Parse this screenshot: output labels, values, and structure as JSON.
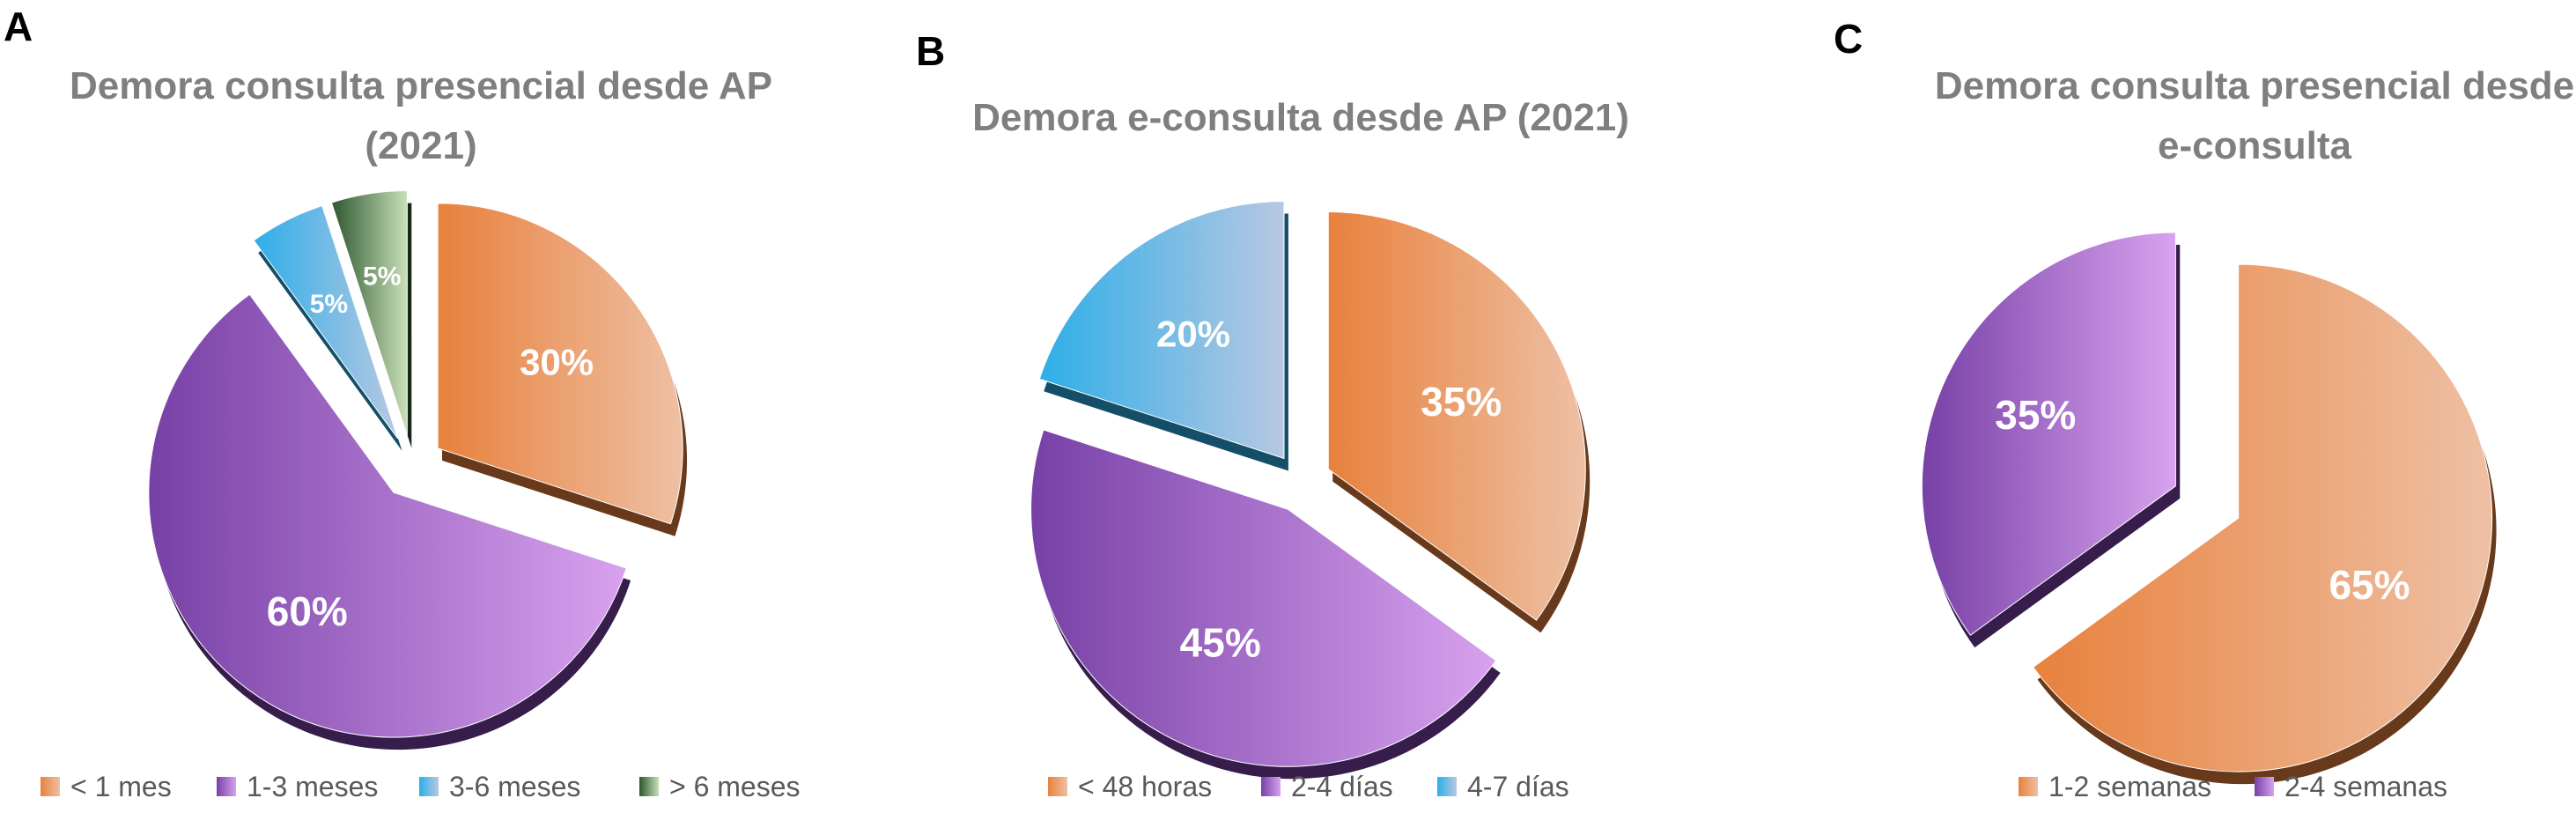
{
  "panel_letters": [
    "A",
    "B",
    "C"
  ],
  "chart_data": [
    {
      "type": "pie",
      "title_lines": [
        "Demora consulta presencial desde AP",
        "(2021)"
      ],
      "categories": [
        "< 1 mes",
        "1-3 meses",
        "3-6 meses",
        "> 6 meses"
      ],
      "values": [
        30,
        60,
        5,
        5
      ],
      "labels": [
        "30%",
        "60%",
        "5%",
        "5%"
      ],
      "colors": [
        [
          "#e8813d",
          "#eec0a4"
        ],
        [
          "#7740a6",
          "#d8a2ef"
        ],
        [
          "#2eaee8",
          "#b7c8e2"
        ],
        [
          "#2e5730",
          "#c8e0b8"
        ]
      ],
      "start_angle_deg": 0,
      "exploded": true,
      "legend_position": "bottom"
    },
    {
      "type": "pie",
      "title_lines": [
        "Demora e-consulta desde AP (2021)"
      ],
      "categories": [
        "< 48 horas",
        "2-4 días",
        "4-7 días"
      ],
      "values": [
        35,
        45,
        20
      ],
      "labels": [
        "35%",
        "45%",
        "20%"
      ],
      "colors": [
        [
          "#e8813d",
          "#eec0a4"
        ],
        [
          "#7740a6",
          "#d8a2ef"
        ],
        [
          "#2eaee8",
          "#b7c8e2"
        ]
      ],
      "start_angle_deg": 0,
      "exploded": true,
      "legend_position": "bottom"
    },
    {
      "type": "pie",
      "title_lines": [
        "Demora consulta presencial desde",
        "e-consulta"
      ],
      "categories": [
        "1-2 semanas",
        "2-4 semanas"
      ],
      "values": [
        65,
        35
      ],
      "labels": [
        "65%",
        "35%"
      ],
      "colors": [
        [
          "#e8813d",
          "#eec0a4"
        ],
        [
          "#7740a6",
          "#d8a2ef"
        ]
      ],
      "start_angle_deg": 0,
      "exploded": true,
      "legend_position": "bottom"
    }
  ]
}
